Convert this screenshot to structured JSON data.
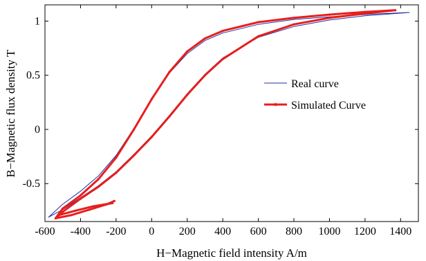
{
  "chart_data": {
    "type": "line",
    "xlabel": "H−Magnetic field intensity A/m",
    "ylabel": "B−Magnetic flux density T",
    "xlim": [
      -600,
      1500
    ],
    "ylim": [
      -0.85,
      1.15
    ],
    "xticks": [
      -600,
      -400,
      -200,
      0,
      200,
      400,
      600,
      800,
      1000,
      1200,
      1400
    ],
    "xtick_labels": [
      "-600",
      "-400",
      "-200",
      "0",
      "200",
      "400",
      "600",
      "800",
      "1000",
      "1200",
      "1400"
    ],
    "yticks": [
      -0.5,
      0,
      0.5,
      1
    ],
    "ytick_labels": [
      "-0.5",
      "0",
      "0.5",
      "1"
    ],
    "grid": false,
    "legend_position": "right",
    "series": [
      {
        "name": "Real curve",
        "color": "#1f2fa0",
        "marker": "none",
        "x": [
          1450,
          1250,
          1000,
          800,
          600,
          400,
          300,
          200,
          100,
          0,
          -100,
          -200,
          -300,
          -400,
          -500,
          -580,
          -500,
          -400,
          -300,
          -200,
          -100,
          0,
          100,
          200,
          300,
          400,
          600,
          800,
          1000,
          1200,
          1450
        ],
        "y": [
          1.08,
          1.065,
          1.04,
          1.015,
          0.97,
          0.89,
          0.82,
          0.7,
          0.52,
          0.28,
          0.01,
          -0.24,
          -0.43,
          -0.57,
          -0.69,
          -0.81,
          -0.74,
          -0.63,
          -0.52,
          -0.39,
          -0.23,
          -0.06,
          0.13,
          0.33,
          0.51,
          0.66,
          0.85,
          0.95,
          1.01,
          1.05,
          1.08
        ]
      },
      {
        "name": "Simulated Curve",
        "color": "#e61e1e",
        "marker": "dot",
        "x": [
          1370,
          1200,
          1000,
          800,
          600,
          400,
          300,
          200,
          100,
          0,
          -100,
          -200,
          -300,
          -400,
          -500,
          -540,
          -500,
          -400,
          -300,
          -200,
          -100,
          0,
          100,
          200,
          300,
          400,
          600,
          800,
          1000,
          1200,
          1370
        ],
        "y": [
          1.1,
          1.085,
          1.06,
          1.03,
          0.99,
          0.91,
          0.84,
          0.72,
          0.53,
          0.28,
          0.0,
          -0.26,
          -0.46,
          -0.61,
          -0.73,
          -0.82,
          -0.76,
          -0.64,
          -0.53,
          -0.4,
          -0.24,
          -0.07,
          0.12,
          0.32,
          0.5,
          0.65,
          0.86,
          0.97,
          1.03,
          1.07,
          1.1
        ]
      },
      {
        "name": "",
        "color": "#e61e1e",
        "marker": "dot",
        "x": [
          -540,
          -450,
          -350,
          -250,
          -210
        ],
        "y": [
          -0.82,
          -0.79,
          -0.74,
          -0.69,
          -0.66
        ]
      },
      {
        "name": "",
        "color": "#e61e1e",
        "marker": "dot",
        "x": [
          -520,
          -430,
          -330,
          -220
        ],
        "y": [
          -0.79,
          -0.75,
          -0.71,
          -0.68
        ]
      }
    ]
  }
}
